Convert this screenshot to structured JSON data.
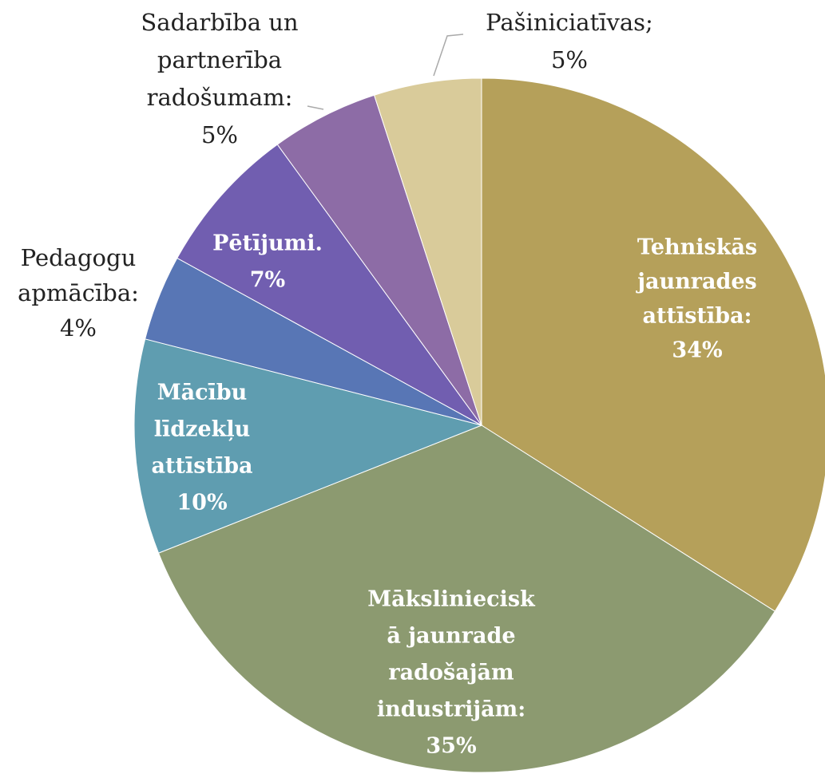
{
  "chart_data": {
    "type": "pie",
    "categories": [
      [
        "Tehniskās",
        "jaunrades",
        "attīstība:"
      ],
      [
        "Māksliniecisk",
        "ā jaunrade",
        "radošajām",
        "industrijām:"
      ],
      [
        "Mācību",
        "līdzekļu",
        "attīstība"
      ],
      [
        "Pedagogu",
        "apmācība:"
      ],
      [
        "Pētījumi."
      ],
      [
        "Sadarbība un",
        "partnerība",
        "radošumam:"
      ],
      [
        "Pašiniciatīvas;"
      ]
    ],
    "values": [
      34,
      35,
      10,
      4,
      7,
      5,
      5
    ],
    "value_labels": [
      "34%",
      "35%",
      "10%",
      "4%",
      "7%",
      "5%",
      "5%"
    ],
    "colors": [
      "#b5a05a",
      "#8c9a70",
      "#5f9db0",
      "#5876b5",
      "#715eb0",
      "#8d6ca6",
      "#d9cb9a"
    ]
  }
}
